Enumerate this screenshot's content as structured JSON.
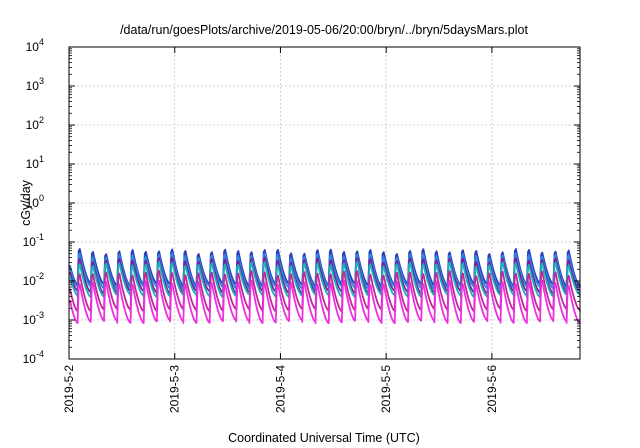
{
  "chart_data": {
    "type": "line",
    "title": "/data/run/goesPlots/archive/2019-05-06/20:00/bryn/../bryn/5daysMars.plot",
    "xlabel": "Coordinated Universal Time (UTC)",
    "ylabel": "cGy/day",
    "yscale": "log",
    "ylim": [
      0.0001,
      10000
    ],
    "xlim": [
      "2019-05-02T00:00",
      "2019-05-06T20:00"
    ],
    "y_ticks": [
      {
        "base": "10",
        "exp": "-4",
        "value": 0.0001
      },
      {
        "base": "10",
        "exp": "-3",
        "value": 0.001
      },
      {
        "base": "10",
        "exp": "-2",
        "value": 0.01
      },
      {
        "base": "10",
        "exp": "-1",
        "value": 0.1
      },
      {
        "base": "10",
        "exp": "0",
        "value": 1
      },
      {
        "base": "10",
        "exp": "1",
        "value": 10
      },
      {
        "base": "10",
        "exp": "2",
        "value": 100
      },
      {
        "base": "10",
        "exp": "3",
        "value": 1000
      },
      {
        "base": "10",
        "exp": "4",
        "value": 10000
      }
    ],
    "x_ticks": [
      "2019-5-2",
      "2019-5-3",
      "2019-5-4",
      "2019-5-5",
      "2019-5-6"
    ],
    "grid": true,
    "legend": "none",
    "cycle_hours": 3.0,
    "series": [
      {
        "color": "#2b3db8",
        "peak": 0.075,
        "trough": 0.008
      },
      {
        "color": "#2a86e0",
        "peak": 0.058,
        "trough": 0.0068
      },
      {
        "color": "#7a1fa0",
        "peak": 0.045,
        "trough": 0.0052
      },
      {
        "color": "#17b3b8",
        "peak": 0.035,
        "trough": 0.0042
      },
      {
        "color": "#c0289a",
        "peak": 0.021,
        "trough": 0.0018
      },
      {
        "color": "#ee2fe0",
        "peak": 0.012,
        "trough": 0.0009
      }
    ]
  }
}
